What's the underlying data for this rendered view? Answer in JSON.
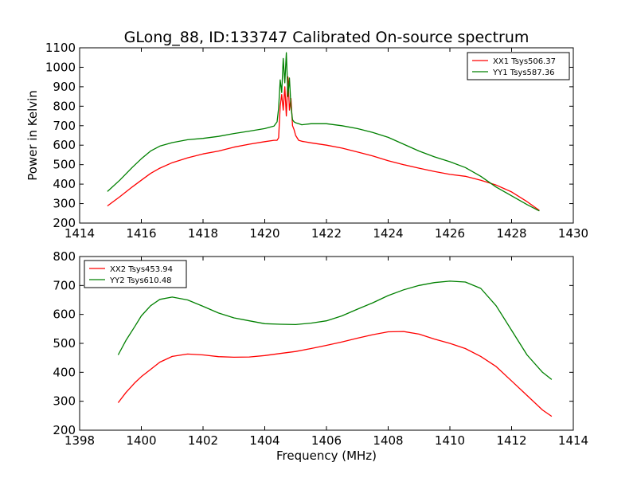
{
  "title": "GLong_88, ID:133747 Calibrated On-source spectrum",
  "chart_data": [
    {
      "type": "line",
      "title": "GLong_88, ID:133747 Calibrated On-source spectrum",
      "xlabel": "",
      "ylabel": "Power in Kelvin",
      "xlim": [
        1414,
        1430
      ],
      "ylim": [
        200,
        1100
      ],
      "xticks": [
        1414,
        1416,
        1418,
        1420,
        1422,
        1424,
        1426,
        1428,
        1430
      ],
      "yticks": [
        200,
        300,
        400,
        500,
        600,
        700,
        800,
        900,
        1000,
        1100
      ],
      "grid": false,
      "legend_position": "top-right",
      "series": [
        {
          "name": "XX1 Tsys506.37",
          "color": "#ff0000",
          "x": [
            1414.9,
            1415.3,
            1415.7,
            1416.0,
            1416.3,
            1416.6,
            1417.0,
            1417.5,
            1418.0,
            1418.5,
            1419.0,
            1419.5,
            1420.0,
            1420.3,
            1420.4,
            1420.45,
            1420.5,
            1420.55,
            1420.6,
            1420.65,
            1420.7,
            1420.75,
            1420.8,
            1420.85,
            1420.9,
            1420.95,
            1421.0,
            1421.1,
            1421.2,
            1421.5,
            1422.0,
            1422.5,
            1423.0,
            1423.5,
            1424.0,
            1424.5,
            1425.0,
            1425.5,
            1426.0,
            1426.5,
            1427.0,
            1427.5,
            1428.0,
            1428.5,
            1428.9
          ],
          "values": [
            288,
            335,
            385,
            420,
            455,
            482,
            510,
            535,
            555,
            570,
            590,
            605,
            618,
            625,
            625,
            638,
            800,
            860,
            780,
            900,
            750,
            950,
            780,
            840,
            700,
            680,
            650,
            625,
            620,
            612,
            600,
            585,
            565,
            545,
            520,
            500,
            482,
            465,
            450,
            440,
            420,
            395,
            360,
            310,
            265
          ]
        },
        {
          "name": "YY1 Tsys587.36",
          "color": "#008000",
          "x": [
            1414.9,
            1415.3,
            1415.7,
            1416.0,
            1416.3,
            1416.6,
            1417.0,
            1417.5,
            1418.0,
            1418.5,
            1419.0,
            1419.5,
            1420.0,
            1420.3,
            1420.4,
            1420.45,
            1420.5,
            1420.55,
            1420.6,
            1420.65,
            1420.7,
            1420.75,
            1420.8,
            1420.85,
            1420.9,
            1420.95,
            1421.0,
            1421.1,
            1421.2,
            1421.5,
            1422.0,
            1422.5,
            1423.0,
            1423.5,
            1424.0,
            1424.5,
            1425.0,
            1425.5,
            1426.0,
            1426.5,
            1427.0,
            1427.5,
            1428.0,
            1428.5,
            1428.9
          ],
          "values": [
            362,
            420,
            485,
            530,
            570,
            595,
            613,
            628,
            635,
            645,
            660,
            672,
            685,
            698,
            720,
            790,
            935,
            870,
            1045,
            920,
            1075,
            850,
            945,
            800,
            730,
            720,
            715,
            710,
            705,
            710,
            710,
            700,
            685,
            665,
            640,
            605,
            570,
            540,
            515,
            485,
            440,
            385,
            340,
            295,
            262
          ]
        }
      ]
    },
    {
      "type": "line",
      "title": "",
      "xlabel": "Frequency (MHz)",
      "ylabel": "",
      "xlim": [
        1398,
        1414
      ],
      "ylim": [
        200,
        800
      ],
      "xticks": [
        1398,
        1400,
        1402,
        1404,
        1406,
        1408,
        1410,
        1412,
        1414
      ],
      "yticks": [
        200,
        300,
        400,
        500,
        600,
        700,
        800
      ],
      "grid": false,
      "legend_position": "top-left",
      "series": [
        {
          "name": "XX2 Tsys453.94",
          "color": "#ff0000",
          "x": [
            1399.25,
            1399.5,
            1399.8,
            1400.0,
            1400.3,
            1400.6,
            1401.0,
            1401.5,
            1402.0,
            1402.5,
            1403.0,
            1403.5,
            1404.0,
            1404.5,
            1405.0,
            1405.5,
            1406.0,
            1406.5,
            1407.0,
            1407.5,
            1408.0,
            1408.5,
            1409.0,
            1409.5,
            1410.0,
            1410.5,
            1411.0,
            1411.5,
            1412.0,
            1412.5,
            1413.0,
            1413.3
          ],
          "values": [
            295,
            330,
            365,
            385,
            410,
            435,
            455,
            463,
            460,
            454,
            452,
            453,
            458,
            465,
            472,
            482,
            493,
            505,
            518,
            530,
            540,
            541,
            532,
            515,
            500,
            482,
            455,
            420,
            370,
            320,
            270,
            248
          ]
        },
        {
          "name": "YY2 Tsys610.48",
          "color": "#008000",
          "x": [
            1399.25,
            1399.5,
            1399.8,
            1400.0,
            1400.3,
            1400.6,
            1401.0,
            1401.5,
            1402.0,
            1402.5,
            1403.0,
            1403.5,
            1404.0,
            1404.5,
            1405.0,
            1405.5,
            1406.0,
            1406.5,
            1407.0,
            1407.5,
            1408.0,
            1408.5,
            1409.0,
            1409.5,
            1410.0,
            1410.5,
            1411.0,
            1411.5,
            1412.0,
            1412.5,
            1413.0,
            1413.3
          ],
          "values": [
            460,
            510,
            560,
            595,
            630,
            652,
            660,
            650,
            628,
            605,
            588,
            578,
            568,
            566,
            565,
            570,
            578,
            595,
            618,
            640,
            665,
            685,
            700,
            710,
            715,
            712,
            690,
            630,
            545,
            460,
            400,
            375
          ]
        }
      ]
    }
  ]
}
